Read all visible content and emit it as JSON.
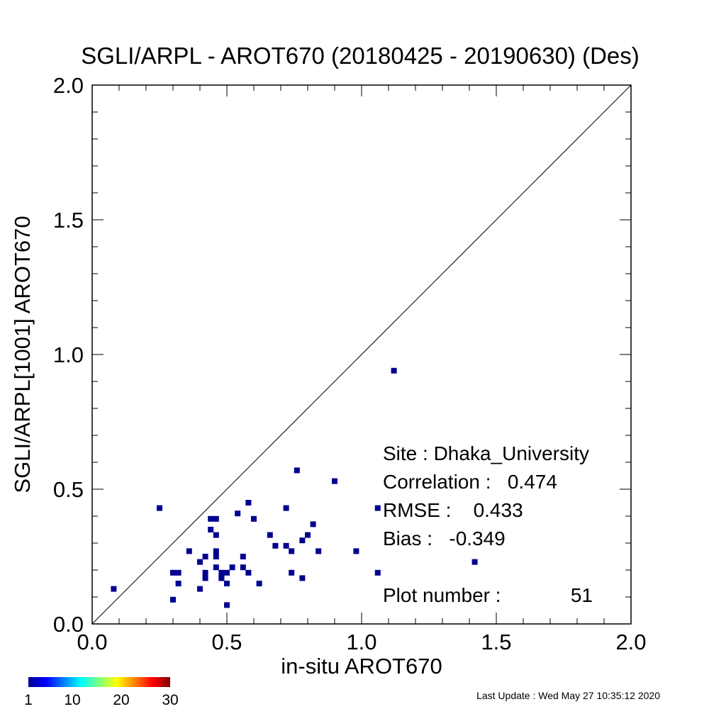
{
  "chart_data": {
    "type": "scatter",
    "title": "SGLI/ARPL - AROT670 (20180425 - 20190630) (Des)",
    "xlabel": "in-situ AROT670",
    "ylabel": "SGLI/ARPL[1001]    AROT670",
    "xlim": [
      0.0,
      2.0
    ],
    "ylim": [
      0.0,
      2.0
    ],
    "xticks": [
      "0.0",
      "0.5",
      "1.0",
      "1.5",
      "2.0"
    ],
    "yticks": [
      "0.0",
      "0.5",
      "1.0",
      "1.5",
      "2.0"
    ],
    "grid": false,
    "reference_line": "1:1",
    "point_color": "#00008f",
    "points": [
      [
        0.08,
        0.13
      ],
      [
        0.25,
        0.43
      ],
      [
        0.3,
        0.09
      ],
      [
        0.3,
        0.19
      ],
      [
        0.32,
        0.19
      ],
      [
        0.32,
        0.15
      ],
      [
        0.36,
        0.27
      ],
      [
        0.4,
        0.23
      ],
      [
        0.4,
        0.13
      ],
      [
        0.42,
        0.25
      ],
      [
        0.42,
        0.19
      ],
      [
        0.42,
        0.17
      ],
      [
        0.44,
        0.39
      ],
      [
        0.44,
        0.35
      ],
      [
        0.46,
        0.39
      ],
      [
        0.46,
        0.33
      ],
      [
        0.46,
        0.27
      ],
      [
        0.46,
        0.25
      ],
      [
        0.46,
        0.21
      ],
      [
        0.48,
        0.19
      ],
      [
        0.48,
        0.17
      ],
      [
        0.5,
        0.19
      ],
      [
        0.5,
        0.15
      ],
      [
        0.5,
        0.07
      ],
      [
        0.52,
        0.21
      ],
      [
        0.54,
        0.41
      ],
      [
        0.56,
        0.25
      ],
      [
        0.56,
        0.21
      ],
      [
        0.58,
        0.45
      ],
      [
        0.58,
        0.19
      ],
      [
        0.6,
        0.39
      ],
      [
        0.62,
        0.15
      ],
      [
        0.66,
        0.33
      ],
      [
        0.68,
        0.29
      ],
      [
        0.72,
        0.43
      ],
      [
        0.72,
        0.29
      ],
      [
        0.74,
        0.27
      ],
      [
        0.74,
        0.19
      ],
      [
        0.76,
        0.57
      ],
      [
        0.78,
        0.31
      ],
      [
        0.78,
        0.17
      ],
      [
        0.8,
        0.33
      ],
      [
        0.82,
        0.37
      ],
      [
        0.84,
        0.27
      ],
      [
        0.9,
        0.53
      ],
      [
        0.98,
        0.27
      ],
      [
        1.06,
        0.43
      ],
      [
        1.06,
        0.19
      ],
      [
        1.12,
        0.94
      ],
      [
        1.42,
        0.23
      ],
      [
        0.48,
        0.17
      ]
    ],
    "colorbar": {
      "ticks": [
        "1",
        "10",
        "20",
        "30"
      ]
    }
  },
  "stats": {
    "site": "Site : Dhaka_University",
    "correlation": "Correlation :   0.474",
    "rmse": "RMSE :    0.433",
    "bias": "Bias :   -0.349",
    "plot_number_label": "Plot number :",
    "plot_number_value": "51"
  },
  "footer": {
    "last_update": "Last Update : Wed May 27 10:35:12 2020"
  }
}
